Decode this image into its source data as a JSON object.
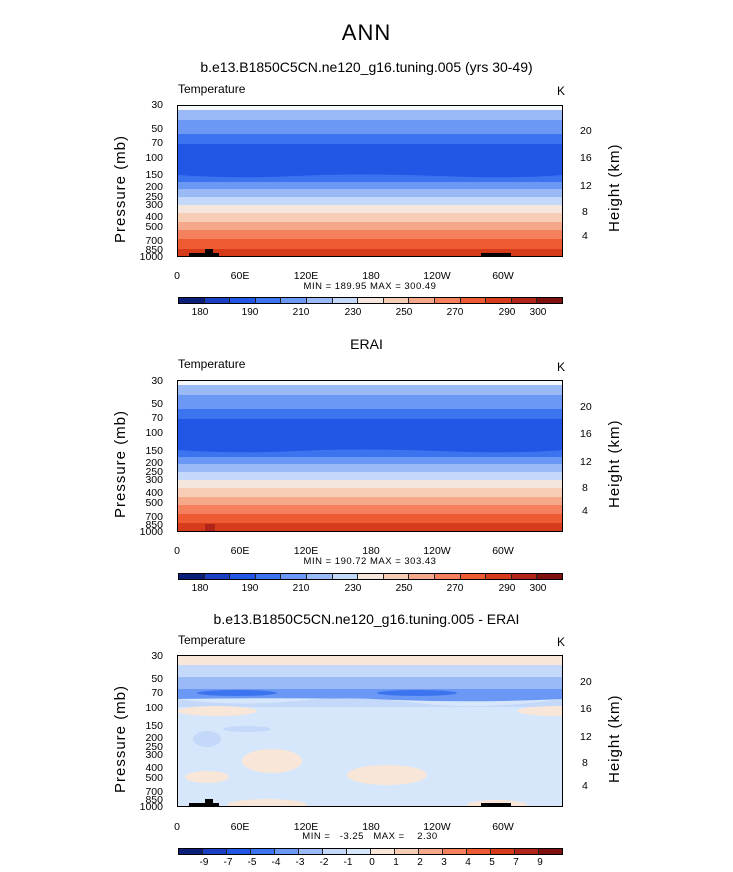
{
  "main_title": "ANN",
  "panels": [
    {
      "title": "b.e13.B1850C5CN.ne120_g16.tuning.005 (yrs 30-49)",
      "variable": "Temperature",
      "unit": "K",
      "minmax": "MIN = 189.95   MAX = 300.49"
    },
    {
      "title": "ERAI",
      "variable": "Temperature",
      "unit": "K",
      "minmax": "MIN = 190.72   MAX = 303.43"
    },
    {
      "title": "b.e13.B1850C5CN.ne120_g16.tuning.005 - ERAI",
      "variable": "Temperature",
      "unit": "K",
      "minmax": "MIN =   -3.25   MAX =    2.30"
    }
  ],
  "axes": {
    "left_title": "Pressure  (mb)",
    "right_title": "Height  (km)",
    "pressure_ticks": [
      "30",
      "50",
      "70",
      "100",
      "150",
      "200",
      "250",
      "300",
      "400",
      "500",
      "700",
      "850",
      "1000"
    ],
    "height_ticks": [
      "20",
      "16",
      "12",
      "8",
      "4"
    ],
    "lon_ticks": [
      "0",
      "60E",
      "120E",
      "180",
      "120W",
      "60W"
    ]
  },
  "colorbars": {
    "temperature": {
      "labels": [
        "180",
        "190",
        "210",
        "230",
        "250",
        "270",
        "290",
        "300"
      ],
      "colors": [
        "#0a1e7a",
        "#1a3fc2",
        "#2257e6",
        "#3c74f0",
        "#6a98f4",
        "#9ab9f7",
        "#c4d8f9",
        "#f4e6dc",
        "#f8cdb6",
        "#f6a98a",
        "#f4805e",
        "#ee5a32",
        "#d63b1c",
        "#b0241a",
        "#7e1010"
      ]
    },
    "difference": {
      "labels": [
        "-9",
        "-7",
        "-5",
        "-4",
        "-3",
        "-2",
        "-1",
        "0",
        "1",
        "2",
        "3",
        "4",
        "5",
        "7",
        "9"
      ],
      "colors": [
        "#0a1e7a",
        "#1a3fc2",
        "#2257e6",
        "#3c74f0",
        "#6a98f4",
        "#9ab9f7",
        "#c4d8f9",
        "#d6e6fb",
        "#f8e6d8",
        "#f8cdb6",
        "#f6a98a",
        "#f4805e",
        "#ee5a32",
        "#d63b1c",
        "#b0241a",
        "#7e1010"
      ]
    }
  },
  "chart_data": [
    {
      "type": "heatmap",
      "title": "b.e13.B1850C5CN.ne120_g16.tuning.005 (yrs 30-49)",
      "field": "Temperature",
      "units": "K",
      "x": [
        "0",
        "60E",
        "120E",
        "180",
        "120W",
        "60W"
      ],
      "y_pressure_mb": [
        30,
        50,
        70,
        100,
        150,
        200,
        250,
        300,
        400,
        500,
        700,
        850,
        1000
      ],
      "approx_zonal_mean_K": [
        215,
        210,
        205,
        200,
        205,
        215,
        225,
        235,
        250,
        260,
        275,
        285,
        290
      ],
      "min": 189.95,
      "max": 300.49,
      "xlabel": "",
      "ylabel": "Pressure  (mb)",
      "y2label": "Height  (km)"
    },
    {
      "type": "heatmap",
      "title": "ERAI",
      "field": "Temperature",
      "units": "K",
      "x": [
        "0",
        "60E",
        "120E",
        "180",
        "120W",
        "60W"
      ],
      "y_pressure_mb": [
        30,
        50,
        70,
        100,
        150,
        200,
        250,
        300,
        400,
        500,
        700,
        850,
        1000
      ],
      "approx_zonal_mean_K": [
        215,
        210,
        205,
        200,
        205,
        215,
        225,
        235,
        250,
        260,
        275,
        285,
        292
      ],
      "min": 190.72,
      "max": 303.43,
      "xlabel": "",
      "ylabel": "Pressure  (mb)",
      "y2label": "Height  (km)"
    },
    {
      "type": "heatmap",
      "title": "b.e13.B1850C5CN.ne120_g16.tuning.005 - ERAI",
      "field": "Temperature",
      "units": "K",
      "x": [
        "0",
        "60E",
        "120E",
        "180",
        "120W",
        "60W"
      ],
      "y_pressure_mb": [
        30,
        50,
        70,
        100,
        150,
        200,
        250,
        300,
        400,
        500,
        700,
        850,
        1000
      ],
      "approx_zonal_mean_diff_K": [
        0.5,
        -1.5,
        -2.5,
        0.3,
        -0.5,
        -0.3,
        0.2,
        0.3,
        -0.3,
        -0.2,
        -0.2,
        0.3,
        -0.2
      ],
      "min": -3.25,
      "max": 2.3,
      "xlabel": "",
      "ylabel": "Pressure  (mb)",
      "y2label": "Height  (km)"
    }
  ]
}
